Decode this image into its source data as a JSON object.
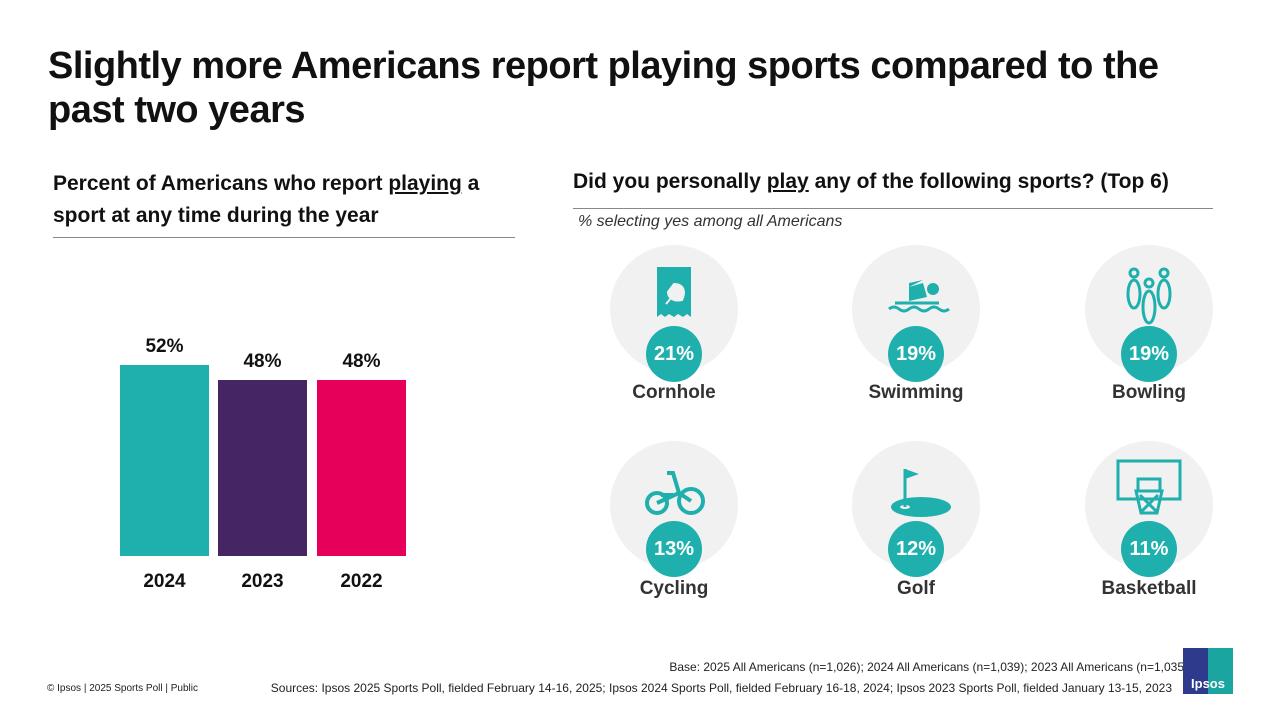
{
  "title": "Slightly more Americans report playing sports compared to the past two years",
  "left": {
    "subtitle_pre": "Percent of Americans who report ",
    "subtitle_underlined": "playing",
    "subtitle_post": " a sport at any time during the year"
  },
  "right": {
    "heading_pre": "Did you personally ",
    "heading_underlined": "play",
    "heading_post": " any of the following sports? (Top 6)",
    "note": "% selecting yes among all Americans",
    "items": [
      {
        "label": "Cornhole",
        "value": "21%",
        "icon": "cornhole-bag-icon"
      },
      {
        "label": "Swimming",
        "value": "19%",
        "icon": "swimmer-icon"
      },
      {
        "label": "Bowling",
        "value": "19%",
        "icon": "bowling-pins-icon"
      },
      {
        "label": "Cycling",
        "value": "13%",
        "icon": "tricycle-icon"
      },
      {
        "label": "Golf",
        "value": "12%",
        "icon": "golf-flag-icon"
      },
      {
        "label": "Basketball",
        "value": "11%",
        "icon": "basketball-hoop-icon"
      }
    ]
  },
  "chart_data": {
    "type": "bar",
    "categories": [
      "2024",
      "2023",
      "2022"
    ],
    "values": [
      52,
      48,
      48
    ],
    "data_labels": [
      "52%",
      "48%",
      "48%"
    ],
    "colors": [
      "#1fb0ad",
      "#452564",
      "#e6005a"
    ],
    "title": "Percent of Americans who report playing a sport at any time during the year",
    "xlabel": "",
    "ylabel": "",
    "ylim": [
      0,
      100
    ],
    "grid": false
  },
  "footer": {
    "base": "Base: 2025 All Americans (n=1,026); 2024 All Americans (n=1,039); 2023 All Americans (n=1,035)",
    "sources": "Sources: Ipsos 2025 Sports Poll, fielded February 14-16, 2025; Ipsos 2024 Sports Poll, fielded February 16-18, 2024; Ipsos 2023 Sports Poll, fielded January 13-15, 2023",
    "copyright": "© Ipsos | 2025 Sports Poll | Public",
    "logo": "Ipsos"
  },
  "colors": {
    "accent": "#1fb0ad",
    "disc": "#f1f1f1"
  }
}
